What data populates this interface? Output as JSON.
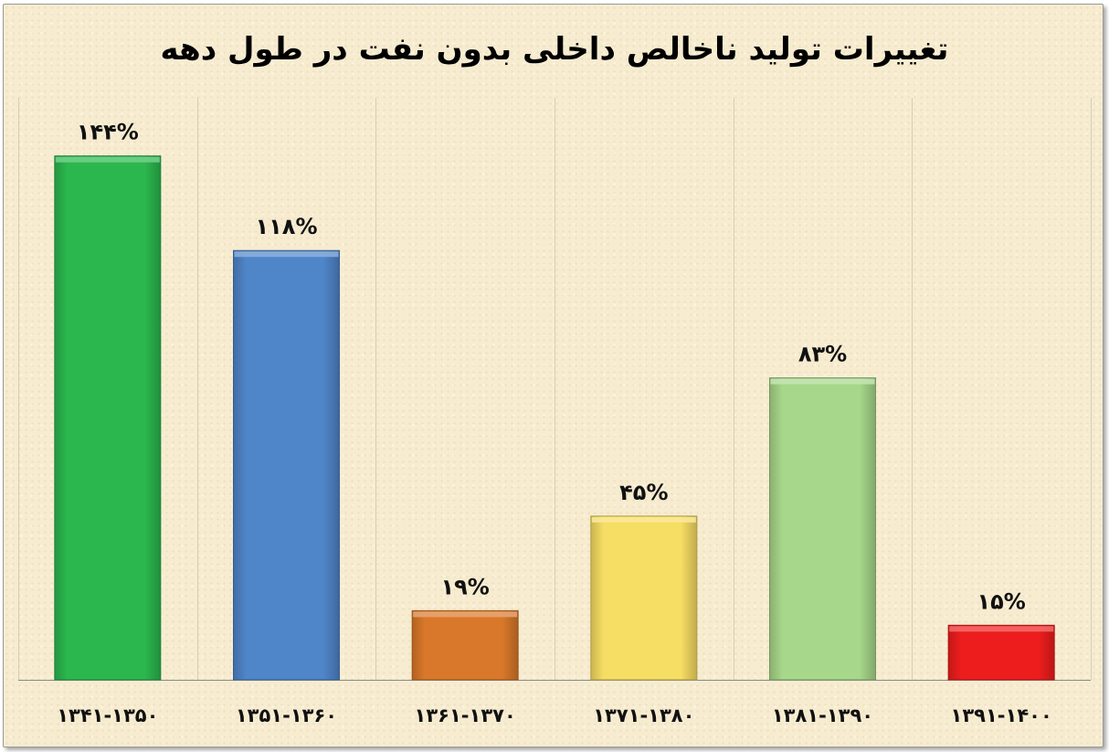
{
  "chart_data": {
    "type": "bar",
    "title": "تغییرات تولید ناخالص داخلی بدون نفت در طول دهه",
    "categories": [
      "۱۳۴۱-۱۳۵۰",
      "۱۳۵۱-۱۳۶۰",
      "۱۳۶۱-۱۳۷۰",
      "۱۳۷۱-۱۳۸۰",
      "۱۳۸۱-۱۳۹۰",
      "۱۳۹۱-۱۴۰۰"
    ],
    "values": [
      144,
      118,
      19,
      45,
      83,
      15
    ],
    "data_labels": [
      "۱۴۴%",
      "۱۱۸%",
      "۱۹%",
      "۴۵%",
      "۸۳%",
      "۱۵%"
    ],
    "bar_colors": [
      "#2bb74e",
      "#4f85c9",
      "#d9782a",
      "#f6dd63",
      "#a7d78a",
      "#ee1d1d"
    ],
    "xlabel": "",
    "ylabel": "",
    "ylim": [
      0,
      160
    ],
    "grid": "vertical",
    "legend": "none"
  }
}
